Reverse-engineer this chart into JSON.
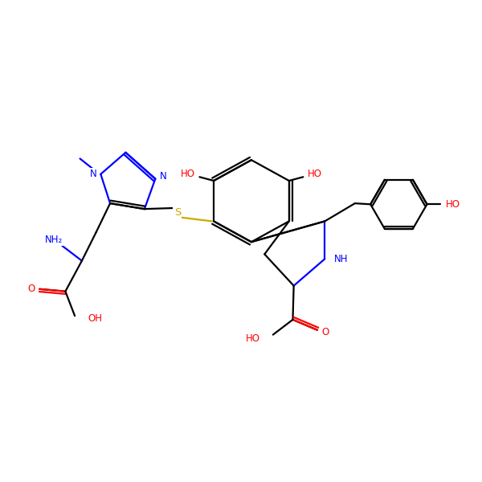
{
  "bg": "#ffffff",
  "bc": "#000000",
  "nc": "#0000ff",
  "oc": "#ff0000",
  "sc": "#ccaa00",
  "figsize": [
    6.0,
    6.0
  ],
  "dpi": 100,
  "xlim": [
    0,
    10
  ],
  "ylim": [
    0,
    10
  ],
  "lw": 1.6,
  "fs": 8.5
}
